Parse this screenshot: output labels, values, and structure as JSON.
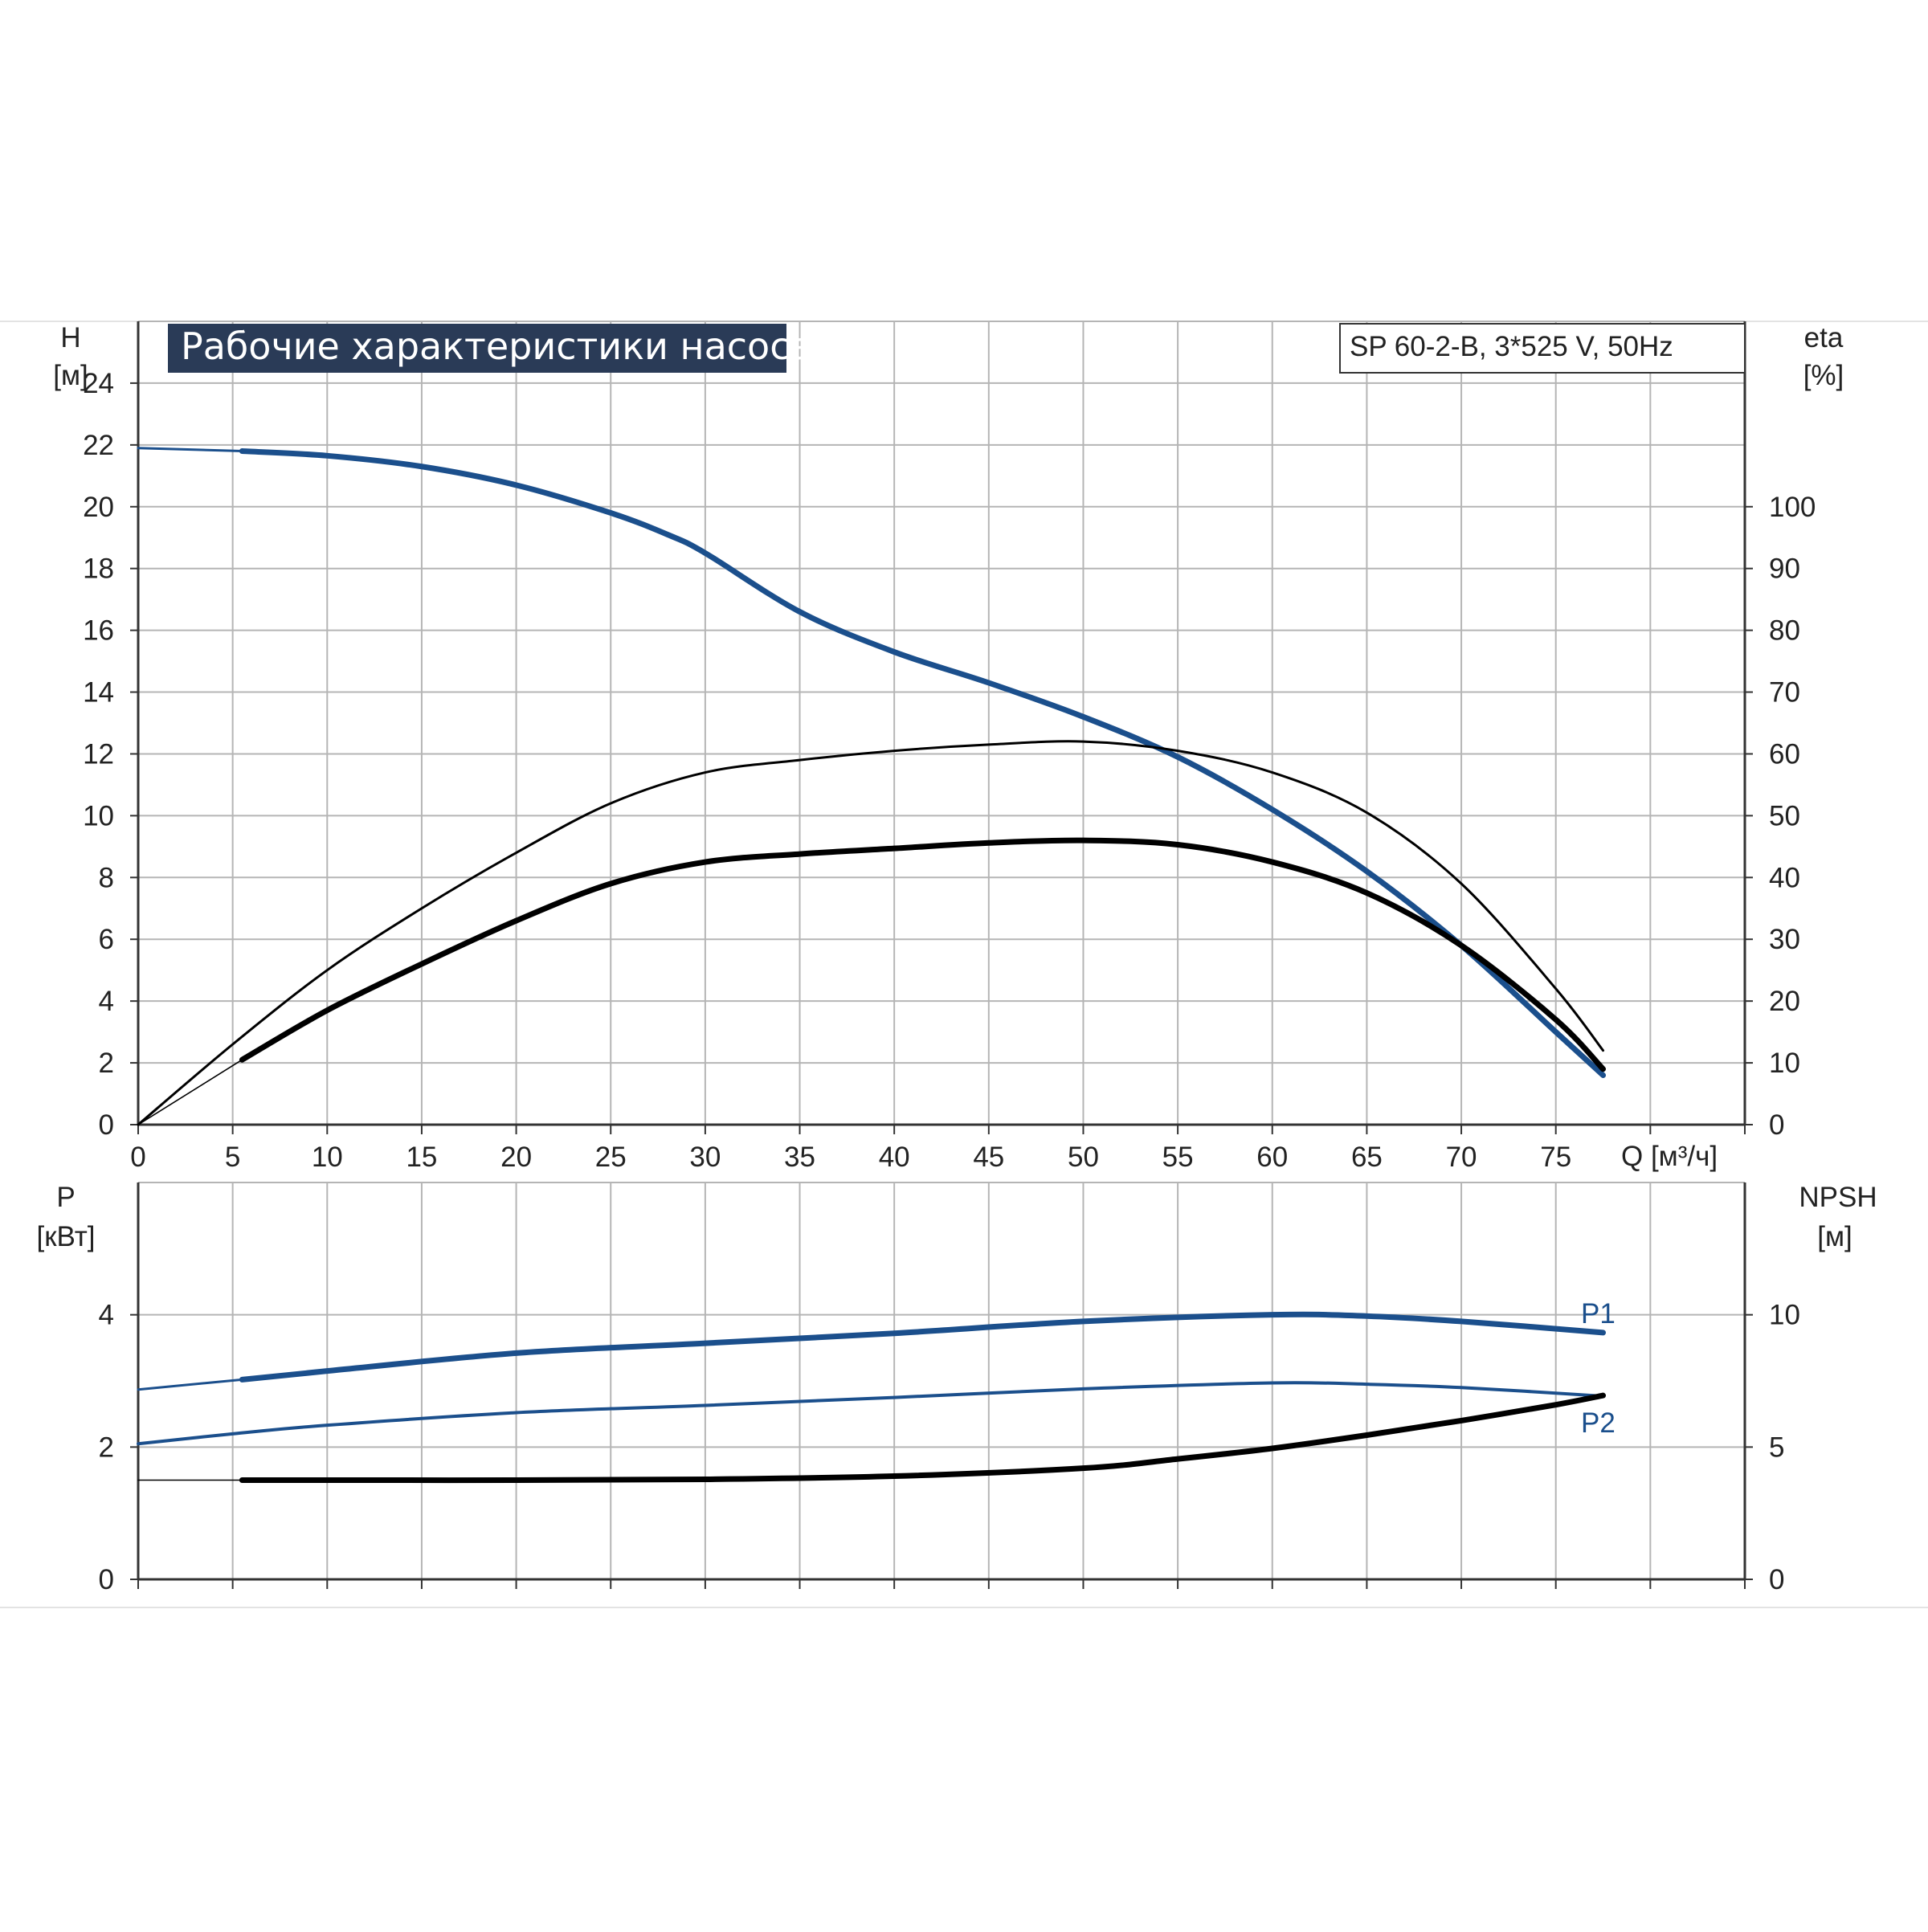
{
  "title": "Рабочие характеристики насоса",
  "model_label": "SP 60-2-B, 3*525 V, 50Hz",
  "colors": {
    "blue": "#1b4f8c",
    "black": "#000000",
    "grid": "#b5b5b5",
    "axis": "#333333",
    "title_bg": "#2a3b57"
  },
  "chart_data": [
    {
      "type": "line",
      "panel": "head-efficiency",
      "xlabel": "Q [м³/ч]",
      "xticks": [
        0,
        5,
        10,
        15,
        20,
        25,
        30,
        35,
        40,
        45,
        50,
        55,
        60,
        65,
        70,
        75
      ],
      "xlim": [
        0,
        85
      ],
      "ylabel_left": {
        "name": "H",
        "unit": "[м]"
      },
      "ylabel_right": {
        "name": "eta",
        "unit": "[%]"
      },
      "ylim_left": [
        0,
        26
      ],
      "yticks_left": [
        0,
        2,
        4,
        6,
        8,
        10,
        12,
        14,
        16,
        18,
        20,
        22,
        24
      ],
      "ylim_right": [
        0,
        130
      ],
      "yticks_right": [
        0,
        10,
        20,
        30,
        40,
        50,
        60,
        70,
        80,
        90,
        100
      ],
      "grid": true,
      "series": [
        {
          "axis": "left",
          "color": "blue",
          "weight": "thick",
          "x": [
            5.5,
            10,
            15,
            20,
            25,
            28,
            30,
            35,
            40,
            45,
            50,
            55,
            60,
            65,
            70,
            75,
            77.5
          ],
          "y": [
            21.8,
            21.65,
            21.3,
            20.7,
            19.8,
            19.1,
            18.5,
            16.6,
            15.3,
            14.3,
            13.2,
            11.9,
            10.2,
            8.2,
            5.8,
            3.0,
            1.6
          ]
        },
        {
          "axis": "left",
          "color": "blue",
          "weight": "thin",
          "x": [
            0,
            5.5
          ],
          "y": [
            21.9,
            21.8
          ]
        },
        {
          "axis": "right",
          "color": "black",
          "weight": "thin",
          "x": [
            0,
            5,
            10,
            15,
            20,
            25,
            30,
            35,
            40,
            45,
            50,
            55,
            60,
            65,
            70,
            75,
            77.5
          ],
          "y": [
            0,
            13,
            25,
            35,
            44,
            52,
            57,
            59,
            60.5,
            61.5,
            62,
            60.5,
            57,
            50.5,
            39,
            22,
            12
          ]
        },
        {
          "axis": "right",
          "color": "black",
          "weight": "thick",
          "x": [
            5.5,
            10,
            15,
            20,
            25,
            30,
            35,
            40,
            45,
            50,
            55,
            60,
            65,
            70,
            75,
            77.5
          ],
          "y": [
            10.5,
            18.5,
            26,
            33,
            39,
            42.5,
            43.8,
            44.7,
            45.6,
            46,
            45.3,
            42.5,
            37.5,
            29,
            17,
            9
          ]
        },
        {
          "axis": "right",
          "color": "black",
          "weight": "hairline",
          "x": [
            0,
            5.5
          ],
          "y": [
            0,
            10.5
          ]
        }
      ]
    },
    {
      "type": "line",
      "panel": "power-npsh",
      "xlim": [
        0,
        85
      ],
      "ylabel_left": {
        "name": "P",
        "unit": "[кВт]"
      },
      "ylabel_right": {
        "name": "NPSH",
        "unit": "[м]"
      },
      "ylim_left": [
        0,
        6
      ],
      "yticks_left": [
        0,
        2,
        4
      ],
      "ylim_right": [
        0,
        15
      ],
      "yticks_right": [
        0,
        5,
        10
      ],
      "grid": true,
      "series": [
        {
          "name": "P1",
          "axis": "left",
          "color": "blue",
          "weight": "thick",
          "x": [
            5.5,
            10,
            20,
            30,
            40,
            50,
            60,
            65,
            70,
            77.5
          ],
          "y": [
            3.02,
            3.15,
            3.42,
            3.57,
            3.72,
            3.9,
            4.0,
            3.98,
            3.9,
            3.73
          ]
        },
        {
          "axis": "left",
          "color": "blue",
          "weight": "thin",
          "x": [
            0,
            5.5
          ],
          "y": [
            2.87,
            3.02
          ]
        },
        {
          "name": "P2",
          "axis": "left",
          "color": "blue",
          "weight": "medium",
          "x": [
            0,
            5,
            10,
            20,
            30,
            40,
            50,
            60,
            65,
            70,
            77.5
          ],
          "y": [
            2.05,
            2.2,
            2.33,
            2.52,
            2.63,
            2.75,
            2.88,
            2.97,
            2.95,
            2.9,
            2.77
          ]
        },
        {
          "axis": "right",
          "color": "black",
          "weight": "thick",
          "x": [
            5.5,
            10,
            20,
            30,
            40,
            50,
            55,
            60,
            65,
            70,
            75,
            77.5
          ],
          "y": [
            3.75,
            3.75,
            3.75,
            3.78,
            3.9,
            4.2,
            4.55,
            4.95,
            5.45,
            6.0,
            6.6,
            6.95
          ]
        },
        {
          "axis": "right",
          "color": "black",
          "weight": "hairline",
          "x": [
            0,
            5.5
          ],
          "y": [
            3.75,
            3.75
          ]
        }
      ]
    }
  ]
}
